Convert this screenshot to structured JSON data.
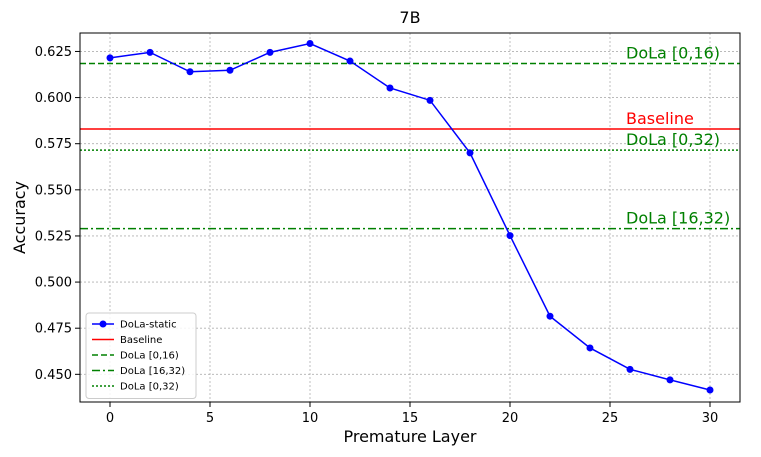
{
  "chart_data": {
    "type": "line",
    "title": "7B",
    "xlabel": "Premature Layer",
    "ylabel": "Accuracy",
    "xlim": [
      -1.5,
      31.5
    ],
    "ylim": [
      0.435,
      0.635
    ],
    "xticks": [
      0,
      5,
      10,
      15,
      20,
      25,
      30
    ],
    "yticks": [
      0.45,
      0.475,
      0.5,
      0.525,
      0.55,
      0.575,
      0.6,
      0.625
    ],
    "grid": true,
    "legend_position": "bottom-left",
    "series": [
      {
        "name": "DoLa-static",
        "color": "#0000ff",
        "marker": "circle",
        "x": [
          0,
          2,
          4,
          6,
          8,
          10,
          12,
          14,
          16,
          18,
          20,
          22,
          24,
          26,
          28,
          30
        ],
        "y": [
          0.6215,
          0.6245,
          0.614,
          0.6148,
          0.6245,
          0.6293,
          0.6198,
          0.6052,
          0.5985,
          0.57,
          0.5252,
          0.4815,
          0.4643,
          0.4527,
          0.447,
          0.4415
        ]
      }
    ],
    "reference_lines": [
      {
        "name": "Baseline",
        "label": "Baseline",
        "value": 0.583,
        "color": "#ff0000",
        "style": "solid"
      },
      {
        "name": "DoLa [0,16)",
        "label": "DoLa [0,16)",
        "value": 0.6185,
        "color": "#008000",
        "style": "dashed"
      },
      {
        "name": "DoLa [16,32)",
        "label": "DoLa [16,32)",
        "value": 0.529,
        "color": "#008000",
        "style": "dashdot"
      },
      {
        "name": "DoLa [0,32)",
        "label": "DoLa [0,32)",
        "value": 0.5715,
        "color": "#008000",
        "style": "dotted"
      }
    ]
  }
}
